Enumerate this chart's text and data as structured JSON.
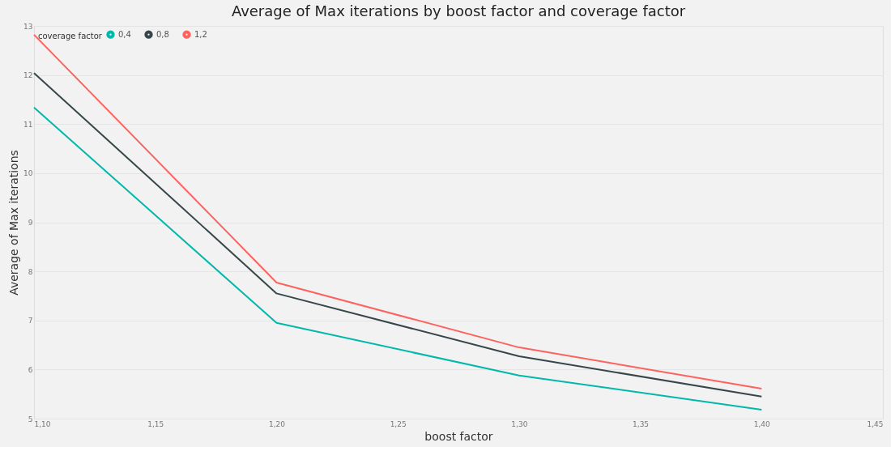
{
  "chart_data": {
    "type": "line",
    "title": "Average of Max iterations by boost factor and coverage factor",
    "xlabel": "boost factor",
    "ylabel": "Average of Max iterations",
    "legend_title": "coverage factor",
    "legend": "top left",
    "grid": "y",
    "marker": "none",
    "line_style": "solid",
    "x": [
      1.1,
      1.2,
      1.3,
      1.4
    ],
    "xlim": [
      1.1,
      1.45
    ],
    "xticks": [
      {
        "value": 1.1,
        "label": "1,10"
      },
      {
        "value": 1.15,
        "label": "1,15"
      },
      {
        "value": 1.2,
        "label": "1,20"
      },
      {
        "value": 1.25,
        "label": "1,25"
      },
      {
        "value": 1.3,
        "label": "1,30"
      },
      {
        "value": 1.35,
        "label": "1,35"
      },
      {
        "value": 1.4,
        "label": "1,40"
      },
      {
        "value": 1.45,
        "label": "1,45"
      }
    ],
    "ylim": [
      5,
      13
    ],
    "yticks": [
      5,
      6,
      7,
      8,
      9,
      10,
      11,
      12,
      13
    ],
    "series": [
      {
        "name": "0,4",
        "color": "#01b8aa",
        "values": [
          11.34,
          6.95,
          5.88,
          5.18
        ]
      },
      {
        "name": "0,8",
        "color": "#374649",
        "values": [
          12.04,
          7.55,
          6.27,
          5.45
        ]
      },
      {
        "name": "1,2",
        "color": "#fd625e",
        "values": [
          12.82,
          7.77,
          6.45,
          5.61
        ]
      }
    ]
  }
}
